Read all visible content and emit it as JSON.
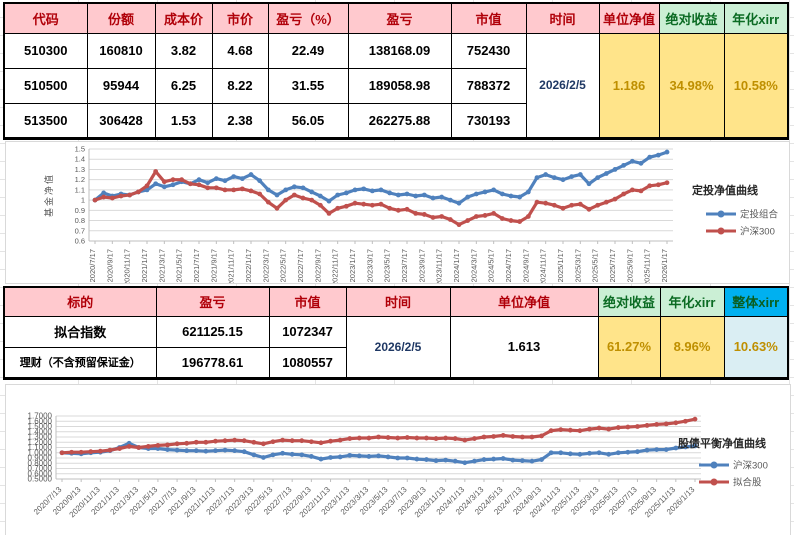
{
  "table1": {
    "headers": [
      "代码",
      "份额",
      "成本价",
      "市价",
      "盈亏（%）",
      "盈亏",
      "市值",
      "时间",
      "单位净值",
      "绝对收益",
      "年化xirr"
    ],
    "rows": [
      {
        "code": "510300",
        "shares": "160810",
        "cost": "3.82",
        "price": "4.68",
        "pnl_pct": "22.49",
        "pnl": "138168.09",
        "market_value": "752430"
      },
      {
        "code": "510500",
        "shares": "95944",
        "cost": "6.25",
        "price": "8.22",
        "pnl_pct": "31.55",
        "pnl": "189058.98",
        "market_value": "788372"
      },
      {
        "code": "513500",
        "shares": "306428",
        "cost": "1.53",
        "price": "2.38",
        "pnl_pct": "56.05",
        "pnl": "262275.88",
        "market_value": "730193"
      }
    ],
    "merged": {
      "time": "2026/2/5",
      "unit_nav": "1.186",
      "abs_return": "34.98%",
      "annual_xirr": "10.58%"
    }
  },
  "table2": {
    "headers": [
      "标的",
      "盈亏",
      "市值",
      "时间",
      "单位净值",
      "绝对收益",
      "年化xirr",
      "整体xirr"
    ],
    "rows": [
      {
        "name": "拟合指数",
        "pnl": "621125.15",
        "market_value": "1072347"
      },
      {
        "name": "理财（不含预留保证金）",
        "pnl": "196778.61",
        "market_value": "1080557"
      }
    ],
    "merged": {
      "time": "2026/2/5",
      "unit_nav": "1.613",
      "abs_return": "61.27%",
      "annual_xirr": "8.96%",
      "overall_xirr": "10.63%"
    }
  },
  "colors": {
    "header_pink_bg": "#FFC9CE",
    "header_red_text": "#B00009",
    "header_green_bg": "#CBEFD5",
    "header_green_text": "#0B6B23",
    "value_yellow_bg": "#FFE48A",
    "value_orange_text": "#BF8F00",
    "header_blue_bg": "#00B0F0",
    "value_lightblue_bg": "#DAEEF3",
    "series_blue": "#4F81BD",
    "series_red": "#C0504D"
  },
  "chart_data": [
    {
      "type": "line",
      "title": "定投净值曲线",
      "ylabel": "基金净值",
      "ylim": [
        0.6,
        1.5
      ],
      "grid": true,
      "legend_position": "right",
      "y_ticks": [
        "1.5",
        "1.4",
        "1.3",
        "1.2",
        "1.1",
        "1",
        "0.9",
        "0.8",
        "0.7",
        "0.6"
      ],
      "x_ticks": [
        "2020/7/17",
        "2020/9/17",
        "2020/11/17",
        "2021/1/17",
        "2021/3/17",
        "2021/5/17",
        "2021/7/17",
        "2021/9/17",
        "2021/11/17",
        "2022/1/17",
        "2022/3/17",
        "2022/5/17",
        "2022/7/17",
        "2022/9/17",
        "2022/11/17",
        "2023/1/17",
        "2023/3/17",
        "2023/5/17",
        "2023/7/17",
        "2023/9/17",
        "2023/11/17",
        "2024/1/17",
        "2024/3/17",
        "2024/5/17",
        "2024/7/17",
        "2024/9/17",
        "2024/11/17",
        "2025/1/17",
        "2025/3/17",
        "2025/5/17",
        "2025/7/17",
        "2025/9/17",
        "2025/11/17",
        "2026/1/17"
      ],
      "x_tick_every_n_points": 2,
      "series": [
        {
          "name": "定投组合",
          "color": "#4F81BD",
          "values": [
            1.0,
            1.07,
            1.04,
            1.06,
            1.05,
            1.08,
            1.1,
            1.16,
            1.13,
            1.15,
            1.18,
            1.16,
            1.2,
            1.17,
            1.21,
            1.19,
            1.23,
            1.21,
            1.25,
            1.19,
            1.1,
            1.05,
            1.1,
            1.13,
            1.12,
            1.08,
            1.04,
            0.99,
            1.05,
            1.07,
            1.1,
            1.11,
            1.09,
            1.1,
            1.07,
            1.05,
            1.06,
            1.04,
            1.05,
            1.02,
            1.03,
            1.0,
            0.97,
            1.03,
            1.06,
            1.08,
            1.1,
            1.06,
            1.04,
            1.03,
            1.08,
            1.22,
            1.25,
            1.22,
            1.2,
            1.23,
            1.25,
            1.16,
            1.22,
            1.26,
            1.3,
            1.34,
            1.38,
            1.36,
            1.42,
            1.44,
            1.47
          ]
        },
        {
          "name": "沪深300",
          "color": "#C0504D",
          "values": [
            1.0,
            1.03,
            1.02,
            1.04,
            1.05,
            1.08,
            1.14,
            1.28,
            1.18,
            1.2,
            1.2,
            1.16,
            1.15,
            1.12,
            1.12,
            1.1,
            1.1,
            1.11,
            1.09,
            1.06,
            0.98,
            0.92,
            1.0,
            1.05,
            1.02,
            1.0,
            0.95,
            0.87,
            0.92,
            0.94,
            0.97,
            0.96,
            0.95,
            0.96,
            0.92,
            0.9,
            0.91,
            0.87,
            0.86,
            0.83,
            0.84,
            0.81,
            0.76,
            0.8,
            0.84,
            0.85,
            0.87,
            0.82,
            0.8,
            0.79,
            0.84,
            0.98,
            0.97,
            0.95,
            0.92,
            0.95,
            0.96,
            0.91,
            0.95,
            0.98,
            1.01,
            1.06,
            1.1,
            1.09,
            1.14,
            1.15,
            1.17
          ]
        }
      ]
    },
    {
      "type": "line",
      "title": "股债平衡净值曲线",
      "ylabel": "",
      "ylim": [
        0.5,
        1.7
      ],
      "grid": true,
      "legend_position": "right",
      "y_ticks": [
        "1.7000",
        "1.6000",
        "1.5000",
        "1.4000",
        "1.3000",
        "1.2000",
        "1.1000",
        "1.0000",
        "0.9000",
        "0.8000",
        "0.7000",
        "0.6000",
        "0.5000"
      ],
      "x_ticks": [
        "2020/7/13",
        "2020/9/13",
        "2020/11/13",
        "2021/1/13",
        "2021/3/13",
        "2021/5/13",
        "2021/7/13",
        "2021/9/13",
        "2021/11/13",
        "2022/1/13",
        "2022/3/13",
        "2022/5/13",
        "2022/7/13",
        "2022/9/13",
        "2022/11/13",
        "2023/1/13",
        "2023/3/13",
        "2023/5/13",
        "2023/7/13",
        "2023/9/13",
        "2023/11/13",
        "2024/1/13",
        "2024/3/13",
        "2024/5/13",
        "2024/7/13",
        "2024/9/13",
        "2024/11/13",
        "2025/1/13",
        "2025/3/13",
        "2025/5/13",
        "2025/7/13",
        "2025/9/13",
        "2025/11/13",
        "2026/1/13"
      ],
      "x_tick_every_n_points": 2,
      "series": [
        {
          "name": "沪深300",
          "color": "#4F81BD",
          "values": [
            1.0,
            0.99,
            0.98,
            1.0,
            1.01,
            1.04,
            1.1,
            1.18,
            1.1,
            1.08,
            1.08,
            1.06,
            1.05,
            1.04,
            1.04,
            1.03,
            1.04,
            1.05,
            1.04,
            1.02,
            0.96,
            0.91,
            0.96,
            0.99,
            0.97,
            0.96,
            0.93,
            0.88,
            0.91,
            0.92,
            0.95,
            0.94,
            0.93,
            0.94,
            0.92,
            0.9,
            0.9,
            0.88,
            0.87,
            0.85,
            0.86,
            0.84,
            0.81,
            0.84,
            0.87,
            0.88,
            0.89,
            0.86,
            0.85,
            0.84,
            0.87,
            1.0,
            1.0,
            0.98,
            0.97,
            0.99,
            1.0,
            0.97,
            1.0,
            1.01,
            1.02,
            1.05,
            1.06,
            1.06,
            1.09,
            1.11,
            1.13
          ]
        },
        {
          "name": "拟合股",
          "color": "#C0504D",
          "values": [
            1.0,
            1.01,
            1.01,
            1.02,
            1.03,
            1.05,
            1.08,
            1.12,
            1.1,
            1.12,
            1.14,
            1.15,
            1.17,
            1.18,
            1.2,
            1.2,
            1.22,
            1.23,
            1.24,
            1.23,
            1.2,
            1.17,
            1.21,
            1.24,
            1.23,
            1.23,
            1.21,
            1.19,
            1.22,
            1.24,
            1.27,
            1.28,
            1.28,
            1.3,
            1.29,
            1.28,
            1.29,
            1.28,
            1.28,
            1.27,
            1.28,
            1.27,
            1.24,
            1.27,
            1.3,
            1.31,
            1.33,
            1.31,
            1.3,
            1.3,
            1.32,
            1.42,
            1.44,
            1.43,
            1.42,
            1.45,
            1.47,
            1.45,
            1.48,
            1.49,
            1.5,
            1.52,
            1.54,
            1.55,
            1.57,
            1.6,
            1.64
          ]
        }
      ]
    }
  ]
}
